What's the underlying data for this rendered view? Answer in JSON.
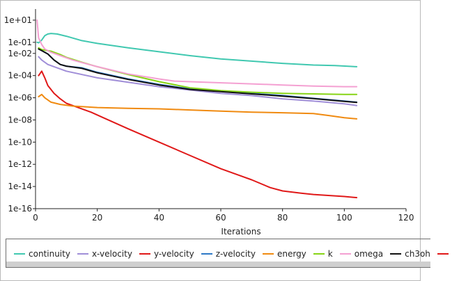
{
  "chart_data": {
    "type": "line",
    "title": "",
    "xlabel": "Iterations",
    "ylabel": "",
    "xlim": [
      0,
      120
    ],
    "ylim_log10": [
      -16,
      2
    ],
    "x_ticks": [
      0,
      20,
      40,
      60,
      80,
      100,
      120
    ],
    "x_tick_labels": [
      "0",
      "20",
      "40",
      "60",
      "80",
      "100",
      "120"
    ],
    "y_ticks_log10": [
      1,
      -1,
      -2,
      -4,
      -6,
      -8,
      -10,
      -12,
      -14,
      -16
    ],
    "y_tick_labels": [
      "1e+01",
      "1e-01",
      "1e-02",
      "1e-04",
      "1e-06",
      "1e-08",
      "1e-10",
      "1e-12",
      "1e-14",
      "1e-16"
    ],
    "series": [
      {
        "name": "continuity",
        "color": "#40c8b0",
        "points": [
          [
            0.5,
            -1.0
          ],
          [
            1,
            -1.05
          ],
          [
            2,
            -0.8
          ],
          [
            3,
            -0.4
          ],
          [
            4,
            -0.25
          ],
          [
            5,
            -0.2
          ],
          [
            7,
            -0.25
          ],
          [
            10,
            -0.45
          ],
          [
            15,
            -0.85
          ],
          [
            20,
            -1.1
          ],
          [
            30,
            -1.5
          ],
          [
            40,
            -1.85
          ],
          [
            50,
            -2.2
          ],
          [
            60,
            -2.5
          ],
          [
            70,
            -2.7
          ],
          [
            80,
            -2.9
          ],
          [
            90,
            -3.05
          ],
          [
            97,
            -3.1
          ],
          [
            104,
            -3.2
          ]
        ]
      },
      {
        "name": "x-velocity",
        "color": "#a08ed8",
        "points": [
          [
            1,
            -2.3
          ],
          [
            2,
            -2.6
          ],
          [
            4,
            -3.0
          ],
          [
            6,
            -3.2
          ],
          [
            10,
            -3.6
          ],
          [
            20,
            -4.2
          ],
          [
            30,
            -4.6
          ],
          [
            40,
            -5.0
          ],
          [
            50,
            -5.3
          ],
          [
            60,
            -5.6
          ],
          [
            70,
            -5.8
          ],
          [
            80,
            -6.1
          ],
          [
            90,
            -6.3
          ],
          [
            100,
            -6.55
          ],
          [
            104,
            -6.7
          ]
        ]
      },
      {
        "name": "y-velocity",
        "color": "#e01818",
        "points": [
          [
            1,
            -4.0
          ],
          [
            2,
            -3.6
          ],
          [
            3,
            -4.2
          ],
          [
            4,
            -4.9
          ],
          [
            6,
            -5.6
          ],
          [
            8,
            -6.1
          ],
          [
            10,
            -6.5
          ],
          [
            14,
            -6.9
          ],
          [
            18,
            -7.3
          ],
          [
            22,
            -7.8
          ],
          [
            30,
            -8.8
          ],
          [
            40,
            -10.0
          ],
          [
            50,
            -11.2
          ],
          [
            60,
            -12.4
          ],
          [
            70,
            -13.4
          ],
          [
            76,
            -14.1
          ],
          [
            80,
            -14.4
          ],
          [
            86,
            -14.6
          ],
          [
            90,
            -14.72
          ],
          [
            100,
            -14.9
          ],
          [
            104,
            -15.0
          ]
        ]
      },
      {
        "name": "z-velocity",
        "color": "#2d78c6",
        "points": [
          [
            1,
            -1.6
          ],
          [
            2,
            -1.75
          ],
          [
            4,
            -2.05
          ],
          [
            6,
            -2.6
          ],
          [
            8,
            -3.0
          ],
          [
            10,
            -3.15
          ],
          [
            15,
            -3.3
          ],
          [
            20,
            -3.7
          ],
          [
            30,
            -4.3
          ],
          [
            40,
            -4.8
          ],
          [
            50,
            -5.2
          ],
          [
            60,
            -5.4
          ],
          [
            70,
            -5.6
          ],
          [
            80,
            -5.8
          ],
          [
            90,
            -6.05
          ],
          [
            100,
            -6.3
          ],
          [
            104,
            -6.4
          ]
        ]
      },
      {
        "name": "energy",
        "color": "#f08a10",
        "points": [
          [
            1,
            -5.9
          ],
          [
            2,
            -5.7
          ],
          [
            3,
            -6.0
          ],
          [
            5,
            -6.4
          ],
          [
            8,
            -6.6
          ],
          [
            12,
            -6.75
          ],
          [
            20,
            -6.88
          ],
          [
            30,
            -6.95
          ],
          [
            40,
            -7.0
          ],
          [
            50,
            -7.1
          ],
          [
            60,
            -7.2
          ],
          [
            70,
            -7.3
          ],
          [
            80,
            -7.35
          ],
          [
            90,
            -7.42
          ],
          [
            95,
            -7.6
          ],
          [
            100,
            -7.8
          ],
          [
            104,
            -7.9
          ]
        ]
      },
      {
        "name": "k",
        "color": "#86d414",
        "points": [
          [
            1,
            -1.5
          ],
          [
            2,
            -1.65
          ],
          [
            3,
            -1.7
          ],
          [
            5,
            -1.8
          ],
          [
            8,
            -2.1
          ],
          [
            10,
            -2.35
          ],
          [
            15,
            -2.8
          ],
          [
            20,
            -3.2
          ],
          [
            30,
            -3.9
          ],
          [
            40,
            -4.55
          ],
          [
            50,
            -5.1
          ],
          [
            60,
            -5.35
          ],
          [
            70,
            -5.5
          ],
          [
            80,
            -5.6
          ],
          [
            90,
            -5.65
          ],
          [
            100,
            -5.7
          ],
          [
            104,
            -5.7
          ]
        ]
      },
      {
        "name": "omega",
        "color": "#f4a0d2",
        "points": [
          [
            0.5,
            1.0
          ],
          [
            1,
            -0.6
          ],
          [
            2,
            -1.2
          ],
          [
            3,
            -1.6
          ],
          [
            5,
            -1.9
          ],
          [
            8,
            -2.2
          ],
          [
            12,
            -2.6
          ],
          [
            16,
            -2.9
          ],
          [
            20,
            -3.2
          ],
          [
            30,
            -3.85
          ],
          [
            40,
            -4.3
          ],
          [
            45,
            -4.5
          ],
          [
            55,
            -4.6
          ],
          [
            70,
            -4.75
          ],
          [
            80,
            -4.85
          ],
          [
            90,
            -4.95
          ],
          [
            100,
            -5.0
          ],
          [
            104,
            -5.0
          ]
        ]
      },
      {
        "name": "ch3oh",
        "color": "#111111",
        "points": [
          [
            1,
            -1.6
          ],
          [
            2,
            -1.75
          ],
          [
            4,
            -2.05
          ],
          [
            6,
            -2.6
          ],
          [
            8,
            -3.0
          ],
          [
            10,
            -3.15
          ],
          [
            15,
            -3.35
          ],
          [
            20,
            -3.75
          ],
          [
            30,
            -4.35
          ],
          [
            40,
            -4.85
          ],
          [
            50,
            -5.25
          ],
          [
            60,
            -5.45
          ],
          [
            70,
            -5.65
          ],
          [
            80,
            -5.85
          ],
          [
            90,
            -6.08
          ],
          [
            100,
            -6.32
          ],
          [
            104,
            -6.42
          ]
        ]
      }
    ],
    "legend_placement": "bottom"
  },
  "legend": {
    "entries": [
      {
        "label": "continuity",
        "color": "#40c8b0"
      },
      {
        "label": "x-velocity",
        "color": "#a08ed8"
      },
      {
        "label": "y-velocity",
        "color": "#e01818"
      },
      {
        "label": "z-velocity",
        "color": "#2d78c6"
      },
      {
        "label": "energy",
        "color": "#f08a10"
      },
      {
        "label": "k",
        "color": "#86d414"
      },
      {
        "label": "omega",
        "color": "#f4a0d2"
      },
      {
        "label": "ch3oh",
        "color": "#111111"
      },
      {
        "label": "",
        "color": "#e01818"
      }
    ]
  },
  "colors": {
    "axis": "#222222",
    "scrollbar": "#cfcfcf"
  }
}
